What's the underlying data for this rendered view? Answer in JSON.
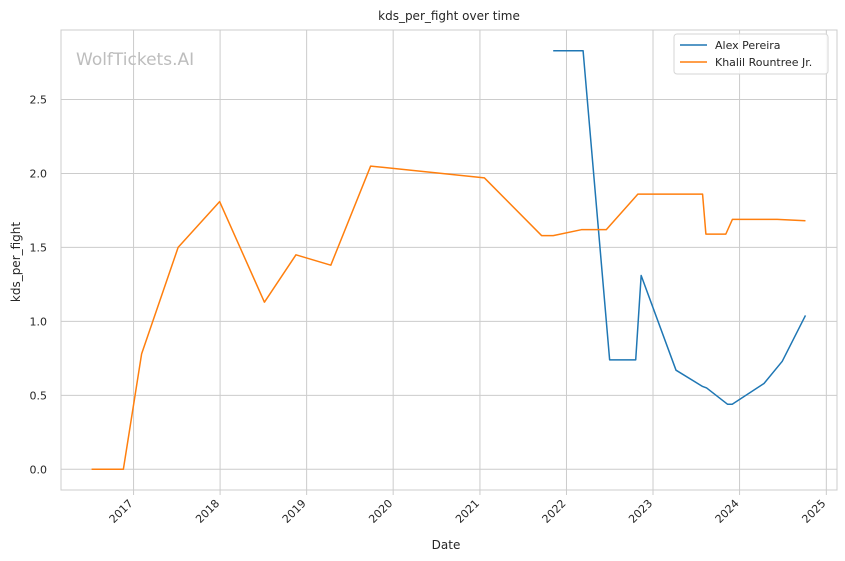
{
  "chart_data": {
    "type": "line",
    "title": "kds_per_fight over time",
    "xlabel": "Date",
    "ylabel": "kds_per_fight",
    "watermark": "WolfTickets.AI",
    "x_type": "date",
    "xlim": [
      "2016-03-01",
      "2025-02-15"
    ],
    "ylim": [
      -0.14,
      2.97
    ],
    "x_ticks": [
      "2017-01-01",
      "2018-01-01",
      "2019-01-01",
      "2020-01-01",
      "2021-01-01",
      "2022-01-01",
      "2023-01-01",
      "2024-01-01",
      "2025-01-01"
    ],
    "x_tick_labels": [
      "2017",
      "2018",
      "2019",
      "2020",
      "2021",
      "2022",
      "2023",
      "2024",
      "2025"
    ],
    "y_ticks": [
      0.0,
      0.5,
      1.0,
      1.5,
      2.0,
      2.5
    ],
    "y_tick_labels": [
      "0.0",
      "0.5",
      "1.0",
      "1.5",
      "2.0",
      "2.5"
    ],
    "grid": true,
    "legend_position": "top-right",
    "series": [
      {
        "name": "Alex Pereira",
        "color": "#1f77b4",
        "points": [
          [
            "2021-11-06",
            2.83
          ],
          [
            "2022-03-12",
            2.83
          ],
          [
            "2022-07-02",
            0.74
          ],
          [
            "2022-10-20",
            0.74
          ],
          [
            "2022-11-12",
            1.31
          ],
          [
            "2023-04-08",
            0.67
          ],
          [
            "2023-07-29",
            0.56
          ],
          [
            "2023-08-15",
            0.55
          ],
          [
            "2023-11-11",
            0.44
          ],
          [
            "2023-12-01",
            0.44
          ],
          [
            "2024-04-13",
            0.58
          ],
          [
            "2024-06-29",
            0.73
          ],
          [
            "2024-10-05",
            1.04
          ]
        ]
      },
      {
        "name": "Khalil Rountree Jr.",
        "color": "#ff7f0e",
        "points": [
          [
            "2016-07-08",
            0.0
          ],
          [
            "2016-11-19",
            0.0
          ],
          [
            "2017-02-04",
            0.78
          ],
          [
            "2017-07-08",
            1.5
          ],
          [
            "2017-12-30",
            1.81
          ],
          [
            "2018-07-07",
            1.13
          ],
          [
            "2018-11-17",
            1.45
          ],
          [
            "2019-04-13",
            1.38
          ],
          [
            "2019-09-28",
            2.05
          ],
          [
            "2021-01-20",
            1.97
          ],
          [
            "2021-09-18",
            1.58
          ],
          [
            "2021-11-06",
            1.58
          ],
          [
            "2022-03-05",
            1.62
          ],
          [
            "2022-06-18",
            1.62
          ],
          [
            "2022-10-29",
            1.86
          ],
          [
            "2023-07-29",
            1.86
          ],
          [
            "2023-08-12",
            1.59
          ],
          [
            "2023-11-04",
            1.59
          ],
          [
            "2023-12-02",
            1.69
          ],
          [
            "2024-06-08",
            1.69
          ],
          [
            "2024-10-05",
            1.68
          ]
        ]
      }
    ]
  }
}
